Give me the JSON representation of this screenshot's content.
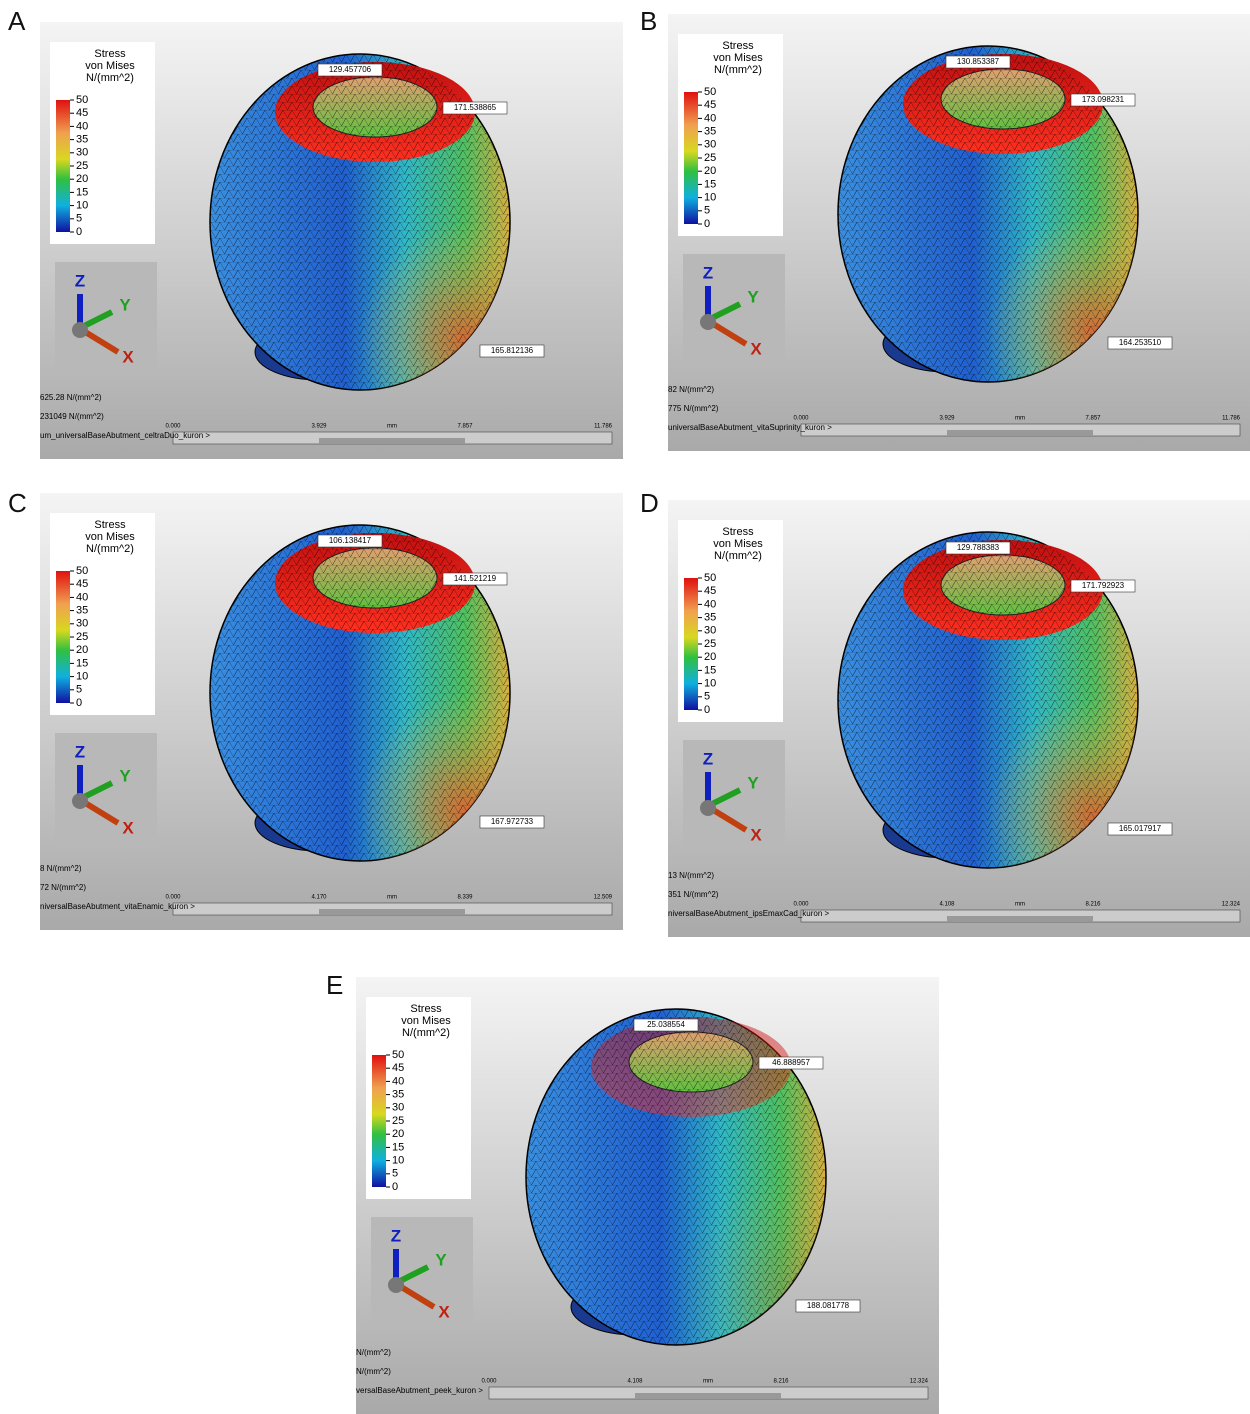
{
  "panels": [
    {
      "letter": "A",
      "legend": {
        "title": [
          "Stress",
          "von Mises",
          "N/(mm^2)"
        ],
        "ticks": [
          50,
          45,
          40,
          35,
          30,
          25,
          20,
          15,
          10,
          5,
          0
        ]
      },
      "axes": [
        "Z",
        "Y",
        "X"
      ],
      "annotations": [
        "129.457706",
        "171.538865",
        "165.812136"
      ],
      "readouts": [
        "625.28 N/(mm^2)",
        "231049 N/(mm^2)"
      ],
      "model": "um_universalBaseAbutment_celtraDuo_kuron >",
      "scale": {
        "ticks": [
          "0.000",
          "3.929",
          "7.857",
          "11.786"
        ],
        "unit": "mm"
      }
    },
    {
      "letter": "B",
      "legend": {
        "title": [
          "Stress",
          "von Mises",
          "N/(mm^2)"
        ],
        "ticks": [
          50,
          45,
          40,
          35,
          30,
          25,
          20,
          15,
          10,
          5,
          0
        ]
      },
      "axes": [
        "Z",
        "Y",
        "X"
      ],
      "annotations": [
        "130.853387",
        "173.098231",
        "164.253510"
      ],
      "readouts": [
        "82 N/(mm^2)",
        "775 N/(mm^2)"
      ],
      "model": "universalBaseAbutment_vitaSuprinity_kuron >",
      "scale": {
        "ticks": [
          "0.000",
          "3.929",
          "7.857",
          "11.786"
        ],
        "unit": "mm"
      }
    },
    {
      "letter": "C",
      "legend": {
        "title": [
          "Stress",
          "von Mises",
          "N/(mm^2)"
        ],
        "ticks": [
          50,
          45,
          40,
          35,
          30,
          25,
          20,
          15,
          10,
          5,
          0
        ]
      },
      "axes": [
        "Z",
        "Y",
        "X"
      ],
      "annotations": [
        "106.138417",
        "141.521219",
        "167.972733"
      ],
      "readouts": [
        "8 N/(mm^2)",
        "72 N/(mm^2)"
      ],
      "model": "niversalBaseAbutment_vitaEnamic_kuron >",
      "scale": {
        "ticks": [
          "0.000",
          "4.170",
          "8.339",
          "12.509"
        ],
        "unit": "mm"
      }
    },
    {
      "letter": "D",
      "legend": {
        "title": [
          "Stress",
          "von Mises",
          "N/(mm^2)"
        ],
        "ticks": [
          50,
          45,
          40,
          35,
          30,
          25,
          20,
          15,
          10,
          5,
          0
        ]
      },
      "axes": [
        "Z",
        "Y",
        "X"
      ],
      "annotations": [
        "129.788383",
        "171.792923",
        "165.017917"
      ],
      "readouts": [
        "13 N/(mm^2)",
        "351 N/(mm^2)"
      ],
      "model": "niversalBaseAbutment_ipsEmaxCad_kuron >",
      "scale": {
        "ticks": [
          "0.000",
          "4.108",
          "8.216",
          "12.324"
        ],
        "unit": "mm"
      }
    },
    {
      "letter": "E",
      "legend": {
        "title": [
          "Stress",
          "von Mises",
          "N/(mm^2)"
        ],
        "ticks": [
          50,
          45,
          40,
          35,
          30,
          25,
          20,
          15,
          10,
          5,
          0
        ]
      },
      "axes": [
        "Z",
        "Y",
        "X"
      ],
      "annotations": [
        "25.038554",
        "46.888957",
        "188.081778"
      ],
      "readouts": [
        "N/(mm^2)",
        "N/(mm^2)"
      ],
      "model": "versalBaseAbutment_peek_kuron >",
      "scale": {
        "ticks": [
          "0.000",
          "4.108",
          "8.216",
          "12.324"
        ],
        "unit": "mm"
      }
    }
  ]
}
